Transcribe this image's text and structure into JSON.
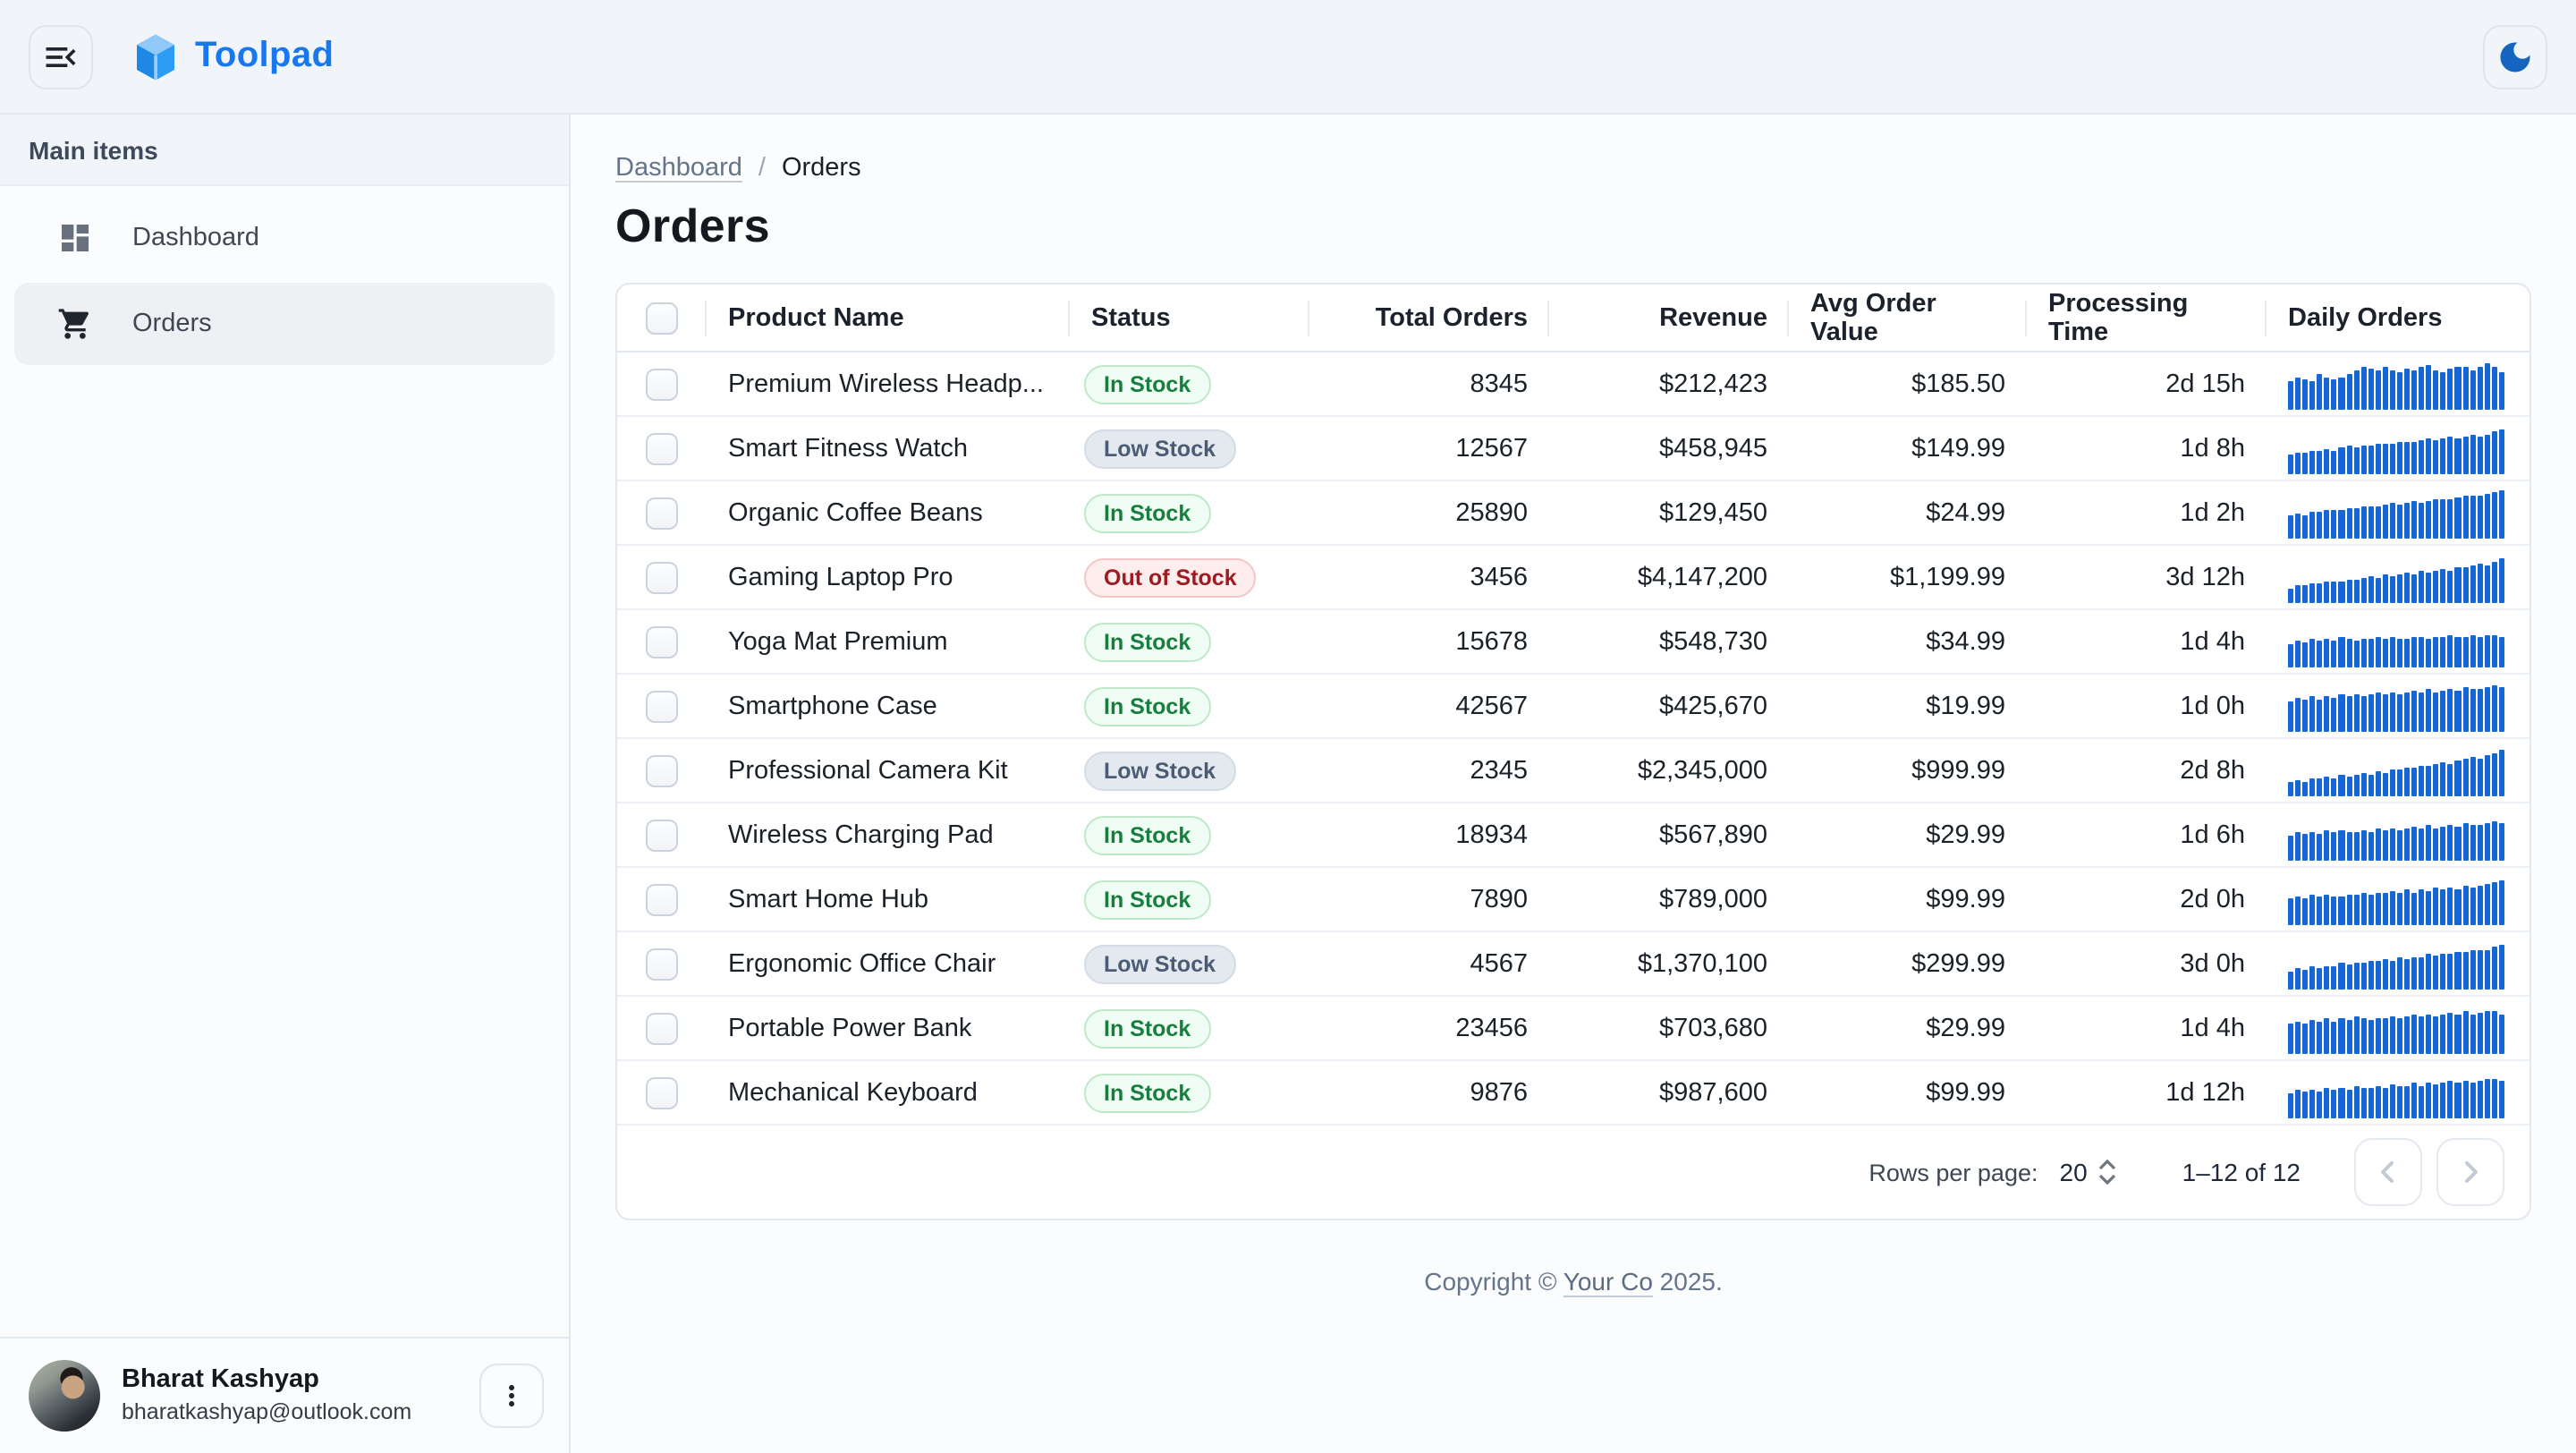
{
  "header": {
    "brand": "Toolpad"
  },
  "sidebar": {
    "section_label": "Main items",
    "items": [
      {
        "label": "Dashboard",
        "icon": "dashboard-icon",
        "selected": false
      },
      {
        "label": "Orders",
        "icon": "shopping-cart-icon",
        "selected": true
      }
    ]
  },
  "breadcrumb": {
    "link": "Dashboard",
    "separator": "/",
    "current": "Orders"
  },
  "page": {
    "title": "Orders"
  },
  "table": {
    "columns": [
      "Product Name",
      "Status",
      "Total Orders",
      "Revenue",
      "Avg Order Value",
      "Processing Time",
      "Daily Orders"
    ],
    "rows": [
      {
        "product": "Premium Wireless Headp...",
        "status": {
          "label": "In Stock",
          "variant": "in"
        },
        "total_orders": "8345",
        "revenue": "$212,423",
        "avg_order_value": "$185.50",
        "processing_time": "2d 15h",
        "daily_orders": [
          58,
          66,
          62,
          56,
          70,
          64,
          60,
          66,
          72,
          80,
          86,
          82,
          78,
          84,
          80,
          76,
          82,
          78,
          84,
          88,
          80,
          76,
          82,
          86,
          84,
          80,
          86,
          92,
          84,
          74
        ]
      },
      {
        "product": "Smart Fitness Watch",
        "status": {
          "label": "Low Stock",
          "variant": "low"
        },
        "total_orders": "12567",
        "revenue": "$458,945",
        "avg_order_value": "$149.99",
        "processing_time": "1d 8h",
        "daily_orders": [
          40,
          44,
          42,
          48,
          46,
          50,
          48,
          52,
          56,
          54,
          58,
          56,
          60,
          62,
          60,
          64,
          66,
          64,
          68,
          70,
          68,
          72,
          74,
          72,
          76,
          78,
          76,
          80,
          84,
          88
        ]
      },
      {
        "product": "Organic Coffee Beans",
        "status": {
          "label": "In Stock",
          "variant": "in"
        },
        "total_orders": "25890",
        "revenue": "$129,450",
        "avg_order_value": "$24.99",
        "processing_time": "1d 2h",
        "daily_orders": [
          45,
          50,
          48,
          54,
          52,
          56,
          58,
          56,
          62,
          60,
          64,
          66,
          64,
          68,
          70,
          68,
          72,
          74,
          72,
          76,
          78,
          80,
          78,
          82,
          84,
          86,
          84,
          88,
          92,
          95
        ]
      },
      {
        "product": "Gaming Laptop Pro",
        "status": {
          "label": "Out of Stock",
          "variant": "out"
        },
        "total_orders": "3456",
        "revenue": "$4,147,200",
        "avg_order_value": "$1,199.99",
        "processing_time": "3d 12h",
        "daily_orders": [
          30,
          36,
          34,
          40,
          38,
          42,
          44,
          42,
          48,
          46,
          50,
          52,
          50,
          56,
          54,
          58,
          60,
          58,
          64,
          62,
          66,
          68,
          66,
          72,
          70,
          74,
          78,
          76,
          82,
          88
        ]
      },
      {
        "product": "Yoga Mat Premium",
        "status": {
          "label": "In Stock",
          "variant": "in"
        },
        "total_orders": "15678",
        "revenue": "$548,730",
        "avg_order_value": "$34.99",
        "processing_time": "1d 4h",
        "daily_orders": [
          48,
          54,
          50,
          56,
          52,
          58,
          54,
          60,
          56,
          54,
          58,
          56,
          60,
          58,
          62,
          58,
          56,
          60,
          62,
          58,
          62,
          60,
          64,
          62,
          60,
          64,
          62,
          66,
          64,
          62
        ]
      },
      {
        "product": "Smartphone Case",
        "status": {
          "label": "In Stock",
          "variant": "in"
        },
        "total_orders": "42567",
        "revenue": "$425,670",
        "avg_order_value": "$19.99",
        "processing_time": "1d 0h",
        "daily_orders": [
          62,
          68,
          64,
          70,
          66,
          72,
          68,
          74,
          70,
          76,
          72,
          74,
          78,
          74,
          80,
          76,
          78,
          82,
          78,
          84,
          80,
          82,
          86,
          82,
          88,
          84,
          86,
          90,
          92,
          88
        ]
      },
      {
        "product": "Professional Camera Kit",
        "status": {
          "label": "Low Stock",
          "variant": "low"
        },
        "total_orders": "2345",
        "revenue": "$2,345,000",
        "avg_order_value": "$999.99",
        "processing_time": "2d 8h",
        "daily_orders": [
          28,
          32,
          30,
          36,
          34,
          38,
          36,
          42,
          40,
          44,
          46,
          44,
          50,
          48,
          54,
          52,
          58,
          56,
          62,
          60,
          66,
          68,
          66,
          72,
          74,
          78,
          76,
          82,
          86,
          92
        ]
      },
      {
        "product": "Wireless Charging Pad",
        "status": {
          "label": "In Stock",
          "variant": "in"
        },
        "total_orders": "18934",
        "revenue": "$567,890",
        "avg_order_value": "$29.99",
        "processing_time": "1d 6h",
        "daily_orders": [
          50,
          56,
          52,
          58,
          54,
          60,
          56,
          62,
          58,
          56,
          60,
          58,
          64,
          60,
          66,
          62,
          64,
          68,
          64,
          70,
          66,
          68,
          72,
          68,
          74,
          70,
          72,
          76,
          78,
          74
        ]
      },
      {
        "product": "Smart Home Hub",
        "status": {
          "label": "In Stock",
          "variant": "in"
        },
        "total_orders": "7890",
        "revenue": "$789,000",
        "avg_order_value": "$99.99",
        "processing_time": "2d 0h",
        "daily_orders": [
          52,
          58,
          54,
          60,
          56,
          62,
          58,
          56,
          62,
          60,
          64,
          62,
          66,
          64,
          68,
          64,
          70,
          66,
          72,
          68,
          74,
          70,
          76,
          72,
          78,
          74,
          80,
          82,
          86,
          90
        ]
      },
      {
        "product": "Ergonomic Office Chair",
        "status": {
          "label": "Low Stock",
          "variant": "low"
        },
        "total_orders": "4567",
        "revenue": "$1,370,100",
        "avg_order_value": "$299.99",
        "processing_time": "3d 0h",
        "daily_orders": [
          36,
          42,
          40,
          46,
          44,
          48,
          46,
          52,
          50,
          54,
          52,
          58,
          56,
          60,
          58,
          64,
          62,
          66,
          64,
          70,
          68,
          72,
          70,
          76,
          74,
          78,
          80,
          78,
          84,
          88
        ]
      },
      {
        "product": "Portable Power Bank",
        "status": {
          "label": "In Stock",
          "variant": "in"
        },
        "total_orders": "23456",
        "revenue": "$703,680",
        "avg_order_value": "$29.99",
        "processing_time": "1d 4h",
        "daily_orders": [
          60,
          66,
          62,
          68,
          64,
          70,
          66,
          72,
          68,
          74,
          70,
          68,
          72,
          70,
          76,
          72,
          74,
          78,
          74,
          80,
          76,
          78,
          82,
          78,
          84,
          80,
          82,
          86,
          84,
          80
        ]
      },
      {
        "product": "Mechanical Keyboard",
        "status": {
          "label": "In Stock",
          "variant": "in"
        },
        "total_orders": "9876",
        "revenue": "$987,600",
        "avg_order_value": "$99.99",
        "processing_time": "1d 12h",
        "daily_orders": [
          50,
          56,
          52,
          58,
          54,
          60,
          56,
          62,
          58,
          64,
          60,
          62,
          66,
          62,
          68,
          64,
          66,
          70,
          66,
          72,
          68,
          70,
          74,
          70,
          76,
          72,
          74,
          78,
          80,
          76
        ]
      }
    ]
  },
  "pagination": {
    "rows_per_page_label": "Rows per page:",
    "rows_per_page": "20",
    "range": "1–12 of 12"
  },
  "footer": {
    "prefix": "Copyright © ",
    "company": "Your Co",
    "suffix": " 2025."
  },
  "user": {
    "name": "Bharat Kashyap",
    "email": "bharatkashyap@outlook.com"
  },
  "icons": {
    "menu": "menu-open-icon",
    "theme": "moon-icon",
    "nav_dashboard": "dashboard-icon",
    "nav_orders": "shopping-cart-icon",
    "stepper": "stepper-up-down-icon",
    "prev": "chevron-left-icon",
    "next": "chevron-right-icon",
    "user_menu": "more-vert-icon"
  },
  "colors": {
    "brand_blue": "#1778F0",
    "moon_blue": "#1565C0",
    "sparkline_blue": "#1567D6",
    "chip_in_stock_text": "#15803D",
    "chip_low_stock_text": "#4B5C74",
    "chip_out_of_stock_text": "#9E1B22",
    "header_bg": "#F1F5F9",
    "border": "#E2E8F0"
  }
}
